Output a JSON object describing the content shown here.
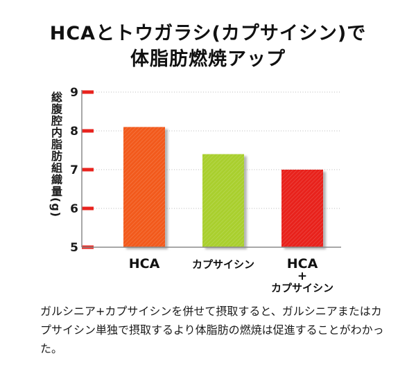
{
  "title_line1": "HCAとトウガラシ(カプサイシン)で",
  "title_line2": "体脂肪燃焼アップ",
  "note": "ガルシニア+カプサイシンを併せて摂取すると、ガルシニアまたはカプサイシン単独で摂取するより体脂肪の燃焼は促進することがわかった。",
  "colors": {
    "hca": "#f25a1c",
    "capsaicin": "#a9cf2e",
    "combo": "#e8231e",
    "tick": "#e8231e",
    "axis": "#8a8a8a"
  },
  "chart_data": {
    "type": "bar",
    "title": "HCAとトウガラシ(カプサイシン)で体脂肪燃焼アップ",
    "ylabel": "総腹腔内脂肪組織量(g)",
    "xlabel": "",
    "ylim": [
      5,
      9
    ],
    "yticks": [
      5,
      6,
      7,
      8,
      9
    ],
    "grid": true,
    "categories": [
      [
        "HCA"
      ],
      [
        "カプサイシン"
      ],
      [
        "HCA",
        "+",
        "カプサイシン"
      ]
    ],
    "values": [
      8.1,
      7.4,
      7.0
    ]
  }
}
